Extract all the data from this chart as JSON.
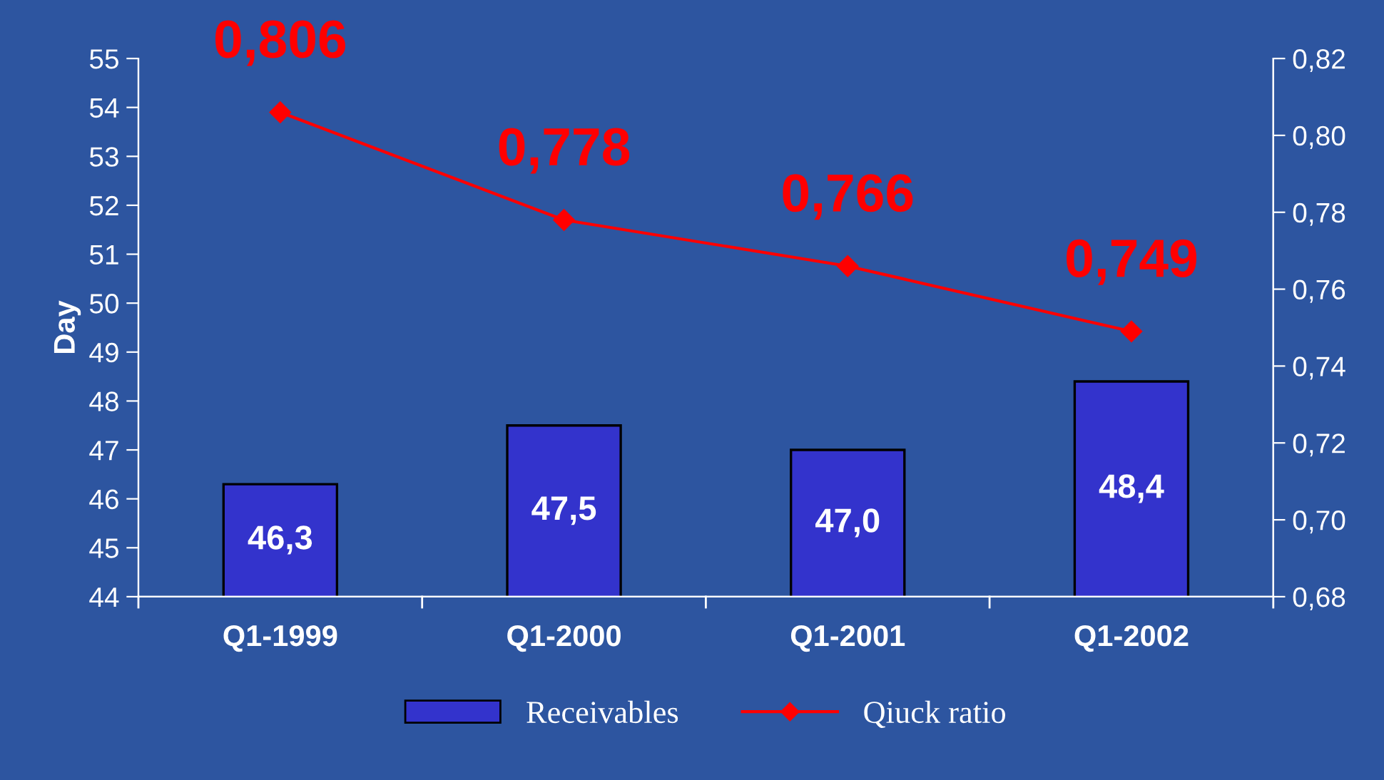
{
  "chart_data": {
    "type": "bar",
    "ylabel": "Day",
    "categories": [
      "Q1-1999",
      "Q1-2000",
      "Q1-2001",
      "Q1-2002"
    ],
    "series": [
      {
        "name": "Receivables",
        "color": "#3333cc",
        "values": [
          46.3,
          47.5,
          47.0,
          48.4
        ],
        "value_labels": [
          "46,3",
          "47,5",
          "47,0",
          "48,4"
        ]
      },
      {
        "name": "Qiuck ratio",
        "type": "line",
        "axis": "y2",
        "color": "#ff0000",
        "marker": "diamond",
        "values": [
          0.806,
          0.778,
          0.766,
          0.749
        ],
        "value_labels": [
          "0,806",
          "0,778",
          "0,766",
          "0,749"
        ]
      }
    ],
    "ylim": [
      44,
      55
    ],
    "yticks": [
      44,
      45,
      46,
      47,
      48,
      49,
      50,
      51,
      52,
      53,
      54,
      55
    ],
    "y2lim": [
      0.68,
      0.82
    ],
    "y2ticks": [
      {
        "value": 0.68,
        "label": "0,68"
      },
      {
        "value": 0.7,
        "label": "0,70"
      },
      {
        "value": 0.72,
        "label": "0,72"
      },
      {
        "value": 0.74,
        "label": "0,74"
      },
      {
        "value": 0.76,
        "label": "0,76"
      },
      {
        "value": 0.78,
        "label": "0,78"
      },
      {
        "value": 0.8,
        "label": "0,80"
      },
      {
        "value": 0.82,
        "label": "0,82"
      }
    ],
    "grid": false,
    "legend": "bottom"
  }
}
